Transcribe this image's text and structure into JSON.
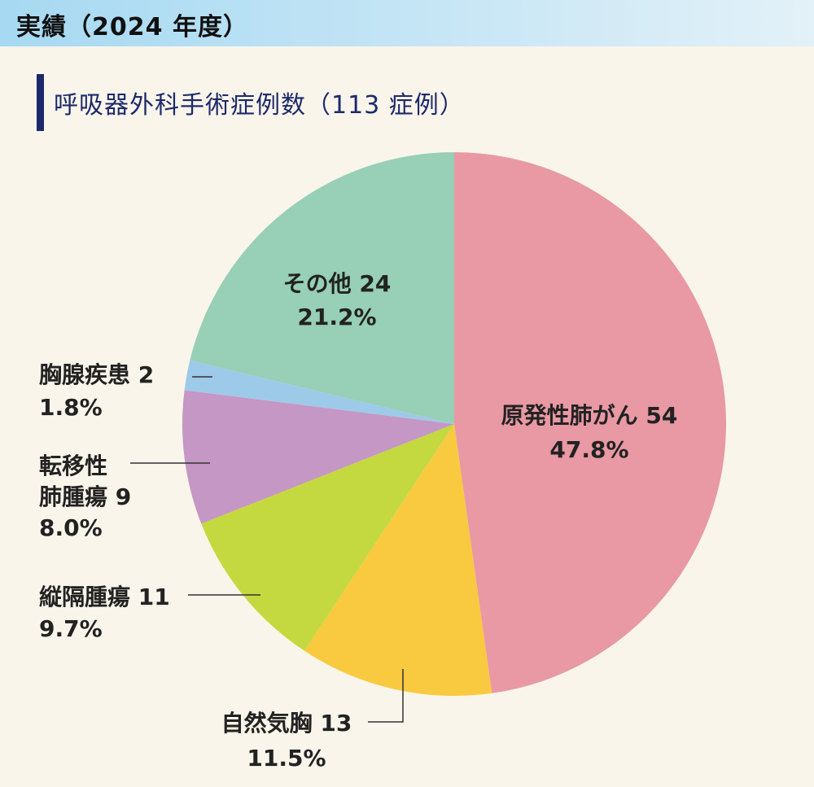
{
  "header": {
    "text": "実績（2024 年度）"
  },
  "chart_data": {
    "type": "pie",
    "title": "呼吸器外科手術症例数（113 症例）",
    "total": 113,
    "slices": [
      {
        "label": "原発性肺がん",
        "value": 54,
        "percent": "47.8%",
        "color": "#e899a4"
      },
      {
        "label": "自然気胸",
        "value": 13,
        "percent": "11.5%",
        "color": "#f9c940"
      },
      {
        "label": "縦隔腫瘍",
        "value": 11,
        "percent": "9.7%",
        "color": "#c4d93f"
      },
      {
        "label": "転移性肺腫瘍",
        "label_lines": [
          "転移性",
          "肺腫瘍"
        ],
        "value": 9,
        "percent": "8.0%",
        "color": "#c597c4"
      },
      {
        "label": "胸腺疾患",
        "value": 2,
        "percent": "1.8%",
        "color": "#9ecae9"
      },
      {
        "label": "その他",
        "value": 24,
        "percent": "21.2%",
        "color": "#97cfb7"
      }
    ]
  }
}
